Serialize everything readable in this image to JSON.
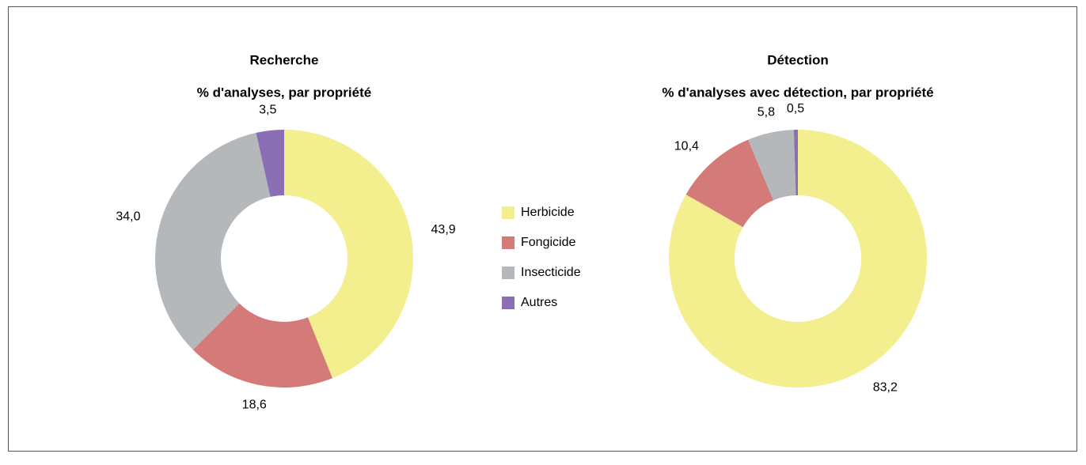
{
  "chart_data": [
    {
      "type": "donut",
      "title": "Recherche",
      "subtitle": "% d'analyses, par propriété",
      "categories": [
        "Herbicide",
        "Fongicide",
        "Insecticide",
        "Autres"
      ],
      "values": [
        43.9,
        18.6,
        34.0,
        3.5
      ],
      "value_labels": [
        "43,9",
        "18,6",
        "34,0",
        "3,5"
      ],
      "colors": [
        "#f3ef8f",
        "#d47a79",
        "#b4b8bb",
        "#8a6fb5"
      ]
    },
    {
      "type": "donut",
      "title": "Détection",
      "subtitle": "% d'analyses avec détection, par propriété",
      "categories": [
        "Herbicide",
        "Fongicide",
        "Insecticide",
        "Autres"
      ],
      "values": [
        83.2,
        10.4,
        5.8,
        0.5
      ],
      "value_labels": [
        "83,2",
        "10,4",
        "5,8",
        "0,5"
      ],
      "colors": [
        "#f3ef8f",
        "#d47a79",
        "#b4b8bb",
        "#8a6fb5"
      ]
    }
  ]
}
